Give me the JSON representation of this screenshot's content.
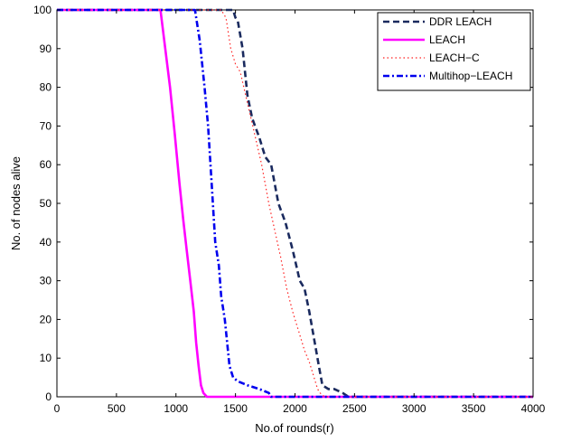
{
  "chart_data": {
    "type": "line",
    "title": "",
    "xlabel": "No.of rounds(r)",
    "ylabel": "No. of nodes alive",
    "xlim": [
      0,
      4000
    ],
    "ylim": [
      0,
      100
    ],
    "xticks": [
      "0",
      "500",
      "1000",
      "1500",
      "2000",
      "2500",
      "3000",
      "3500",
      "4000"
    ],
    "yticks": [
      "0",
      "10",
      "20",
      "30",
      "40",
      "50",
      "60",
      "70",
      "80",
      "90",
      "100"
    ],
    "grid": false,
    "legend_position": "top-right",
    "series": [
      {
        "name": "DDR LEACH",
        "color": "#1a2a5e",
        "dash": "dashed",
        "x": [
          0,
          1480,
          1500,
          1520,
          1560,
          1600,
          1640,
          1700,
          1750,
          1800,
          1860,
          1920,
          1980,
          2040,
          2080,
          2120,
          2160,
          2200,
          2230,
          2280,
          2330,
          2400,
          2450,
          4000
        ],
        "y": [
          100,
          100,
          98,
          97,
          90,
          78,
          72,
          67,
          62,
          60,
          50,
          45,
          38,
          30,
          28,
          22,
          15,
          8,
          3,
          2,
          2,
          1,
          0,
          0
        ]
      },
      {
        "name": "LEACH",
        "color": "#ff00ff",
        "dash": "solid",
        "x": [
          0,
          870,
          910,
          950,
          990,
          1030,
          1060,
          1090,
          1120,
          1150,
          1170,
          1190,
          1210,
          1230,
          1260,
          4000
        ],
        "y": [
          100,
          100,
          90,
          80,
          68,
          55,
          46,
          38,
          30,
          22,
          14,
          8,
          3,
          1,
          0,
          0
        ]
      },
      {
        "name": "LEACH−C",
        "color": "#ff2020",
        "dash": "dotted",
        "x": [
          0,
          1380,
          1420,
          1460,
          1500,
          1540,
          1600,
          1660,
          1720,
          1780,
          1830,
          1880,
          1930,
          1980,
          2030,
          2080,
          2120,
          2160,
          2190,
          2210,
          2250,
          4000
        ],
        "y": [
          100,
          100,
          98,
          90,
          86,
          84,
          76,
          68,
          60,
          50,
          43,
          36,
          28,
          22,
          17,
          12,
          9,
          5,
          2,
          1,
          0,
          0
        ]
      },
      {
        "name": "Multihop−LEACH",
        "color": "#0000ee",
        "dash": "dashdot",
        "x": [
          0,
          1160,
          1200,
          1240,
          1270,
          1300,
          1330,
          1360,
          1380,
          1410,
          1430,
          1450,
          1480,
          1520,
          1600,
          1700,
          1780,
          1800,
          4000
        ],
        "y": [
          100,
          100,
          92,
          80,
          70,
          55,
          40,
          34,
          26,
          20,
          14,
          8,
          5,
          4,
          3,
          2,
          1,
          0,
          0
        ]
      }
    ]
  }
}
